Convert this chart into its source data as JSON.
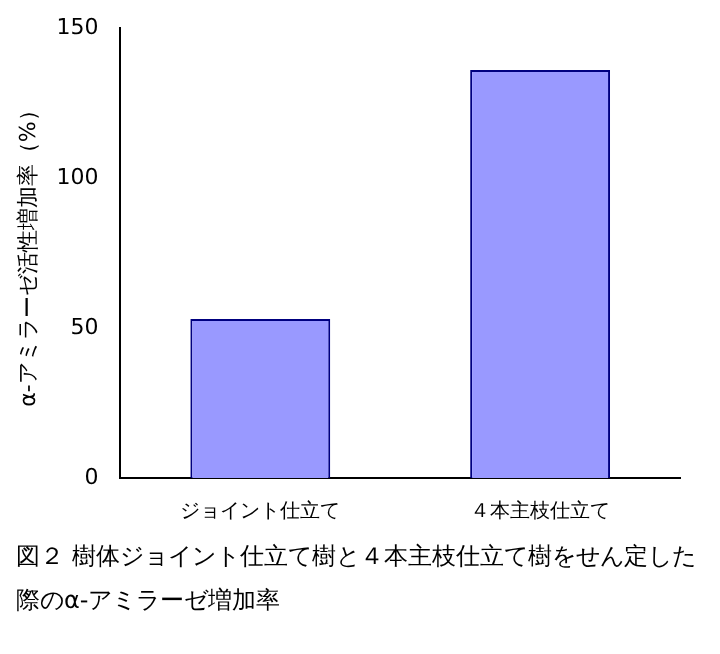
{
  "chart_data": {
    "type": "bar",
    "ylabel": "α-アミラーゼ活性増加率（%）",
    "categories": [
      "ジョイント仕立て",
      "４本主枝仕立て"
    ],
    "values": [
      53,
      136
    ],
    "color": "#9999ff",
    "ylim": [
      0,
      150
    ],
    "yticks": [
      0,
      50,
      100,
      150
    ],
    "grid": false,
    "legend": false,
    "annotations": [
      "図２ 樹体ジョイント仕立て樹と４本主枝仕立て樹をせん定した際のα-アミラーゼ増加率"
    ]
  }
}
